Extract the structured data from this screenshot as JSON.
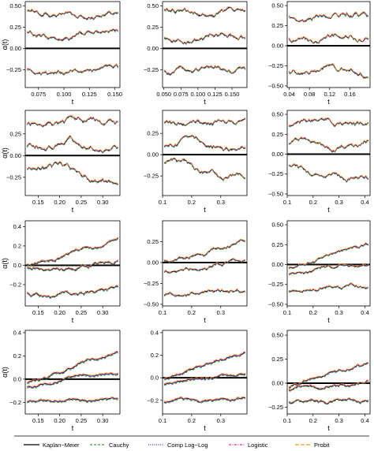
{
  "legend": {
    "entries": [
      {
        "name": "Kaplan−Meier",
        "color": "#000000",
        "dash": "solid"
      },
      {
        "name": "Cauchy",
        "color": "#2e9e2e",
        "dash": "dashed"
      },
      {
        "name": "Comp Log−Log",
        "color": "#3333dd",
        "dash": "dotted"
      },
      {
        "name": "Logistic",
        "color": "#e0309a",
        "dash": "dotdash"
      },
      {
        "name": "Probit",
        "color": "#f09a1a",
        "dash": "longdash"
      }
    ]
  },
  "chart_data": [
    {
      "type": "line",
      "panel": "r1c1",
      "xlabel": "t",
      "ylabel": "α(t)",
      "xlim": [
        0.062,
        0.155
      ],
      "ylim": [
        -0.46,
        0.55
      ],
      "xticks": [
        0.075,
        0.1,
        0.125,
        0.15
      ],
      "xtick_labels": [
        "0.075",
        "0.100",
        "0.125",
        "0.150"
      ],
      "yticks": [
        -0.25,
        0,
        0.25,
        0.5
      ],
      "ytick_labels": [
        "−0.25",
        "0.00",
        "0.25",
        "0.50"
      ],
      "bands": [
        0.41,
        0.14,
        -0.23
      ],
      "amp": 0.06,
      "trend": [
        0,
        0,
        0
      ],
      "seed": 1
    },
    {
      "type": "line",
      "panel": "r1c2",
      "xlabel": "t",
      "ylabel": "",
      "xlim": [
        0.048,
        0.172
      ],
      "ylim": [
        -0.46,
        0.55
      ],
      "xticks": [
        0.05,
        0.075,
        0.1,
        0.125,
        0.15
      ],
      "xtick_labels": [
        "0.050",
        "0.075",
        "0.100",
        "0.125",
        "0.150"
      ],
      "yticks": [
        -0.25,
        0,
        0.25,
        0.5
      ],
      "ytick_labels": [
        "−0.25",
        "0.00",
        "0.25",
        "0.50"
      ],
      "bands": [
        0.41,
        0.14,
        -0.23
      ],
      "amp": 0.06,
      "trend": [
        0,
        0,
        0
      ],
      "seed": 2
    },
    {
      "type": "line",
      "panel": "r1c3",
      "xlabel": "t",
      "ylabel": "",
      "xlim": [
        0.036,
        0.2
      ],
      "ylim": [
        -0.52,
        0.55
      ],
      "xticks": [
        0.04,
        0.08,
        0.12,
        0.16
      ],
      "xtick_labels": [
        "0.04",
        "0.08",
        "0.12",
        "0.16"
      ],
      "yticks": [
        -0.5,
        -0.25,
        0,
        0.25,
        0.5
      ],
      "ytick_labels": [
        "−0.50",
        "−0.25",
        "0.00",
        "0.25",
        "0.50"
      ],
      "bands": [
        0.38,
        0.12,
        -0.3
      ],
      "amp": 0.07,
      "trend": [
        0,
        0,
        0
      ],
      "seed": 3
    },
    {
      "type": "line",
      "panel": "r2c1",
      "xlabel": "t",
      "ylabel": "α(t)",
      "xlim": [
        0.12,
        0.34
      ],
      "ylim": [
        -0.46,
        0.52
      ],
      "xticks": [
        0.15,
        0.2,
        0.25,
        0.3
      ],
      "xtick_labels": [
        "0.15",
        "0.20",
        "0.25",
        "0.30"
      ],
      "yticks": [
        -0.25,
        0,
        0.25
      ],
      "ytick_labels": [
        "−0.25",
        "0.00",
        "0.25"
      ],
      "bands": [
        0.38,
        0.12,
        -0.2
      ],
      "amp": 0.07,
      "trend": [
        0,
        0,
        -0.15
      ],
      "seed": 4
    },
    {
      "type": "line",
      "panel": "r2c2",
      "xlabel": "t",
      "ylabel": "",
      "xlim": [
        0.1,
        0.39
      ],
      "ylim": [
        -0.48,
        0.52
      ],
      "xticks": [
        0.1,
        0.2,
        0.3
      ],
      "xtick_labels": [
        "0.1",
        "0.2",
        "0.3"
      ],
      "yticks": [
        -0.25,
        0,
        0.25
      ],
      "ytick_labels": [
        "−0.25",
        "0.00",
        "0.25"
      ],
      "bands": [
        0.38,
        0.12,
        -0.2
      ],
      "amp": 0.06,
      "trend": [
        0,
        0,
        -0.18
      ],
      "seed": 5
    },
    {
      "type": "line",
      "panel": "r2c3",
      "xlabel": "t",
      "ylabel": "",
      "xlim": [
        0.1,
        0.42
      ],
      "ylim": [
        -0.52,
        0.55
      ],
      "xticks": [
        0.1,
        0.2,
        0.3,
        0.4
      ],
      "xtick_labels": [
        "0.1",
        "0.2",
        "0.3",
        "0.4"
      ],
      "yticks": [
        -0.5,
        -0.25,
        0,
        0.25,
        0.5
      ],
      "ytick_labels": [
        "−0.50",
        "−0.25",
        "0.00",
        "0.25",
        "0.50"
      ],
      "bands": [
        0.38,
        0.12,
        -0.25
      ],
      "amp": 0.06,
      "trend": [
        0,
        0,
        -0.15
      ],
      "seed": 6
    },
    {
      "type": "line",
      "panel": "r3c1",
      "xlabel": "t",
      "ylabel": "α(t)",
      "xlim": [
        0.12,
        0.34
      ],
      "ylim": [
        -0.42,
        0.46
      ],
      "xticks": [
        0.15,
        0.2,
        0.25,
        0.3
      ],
      "xtick_labels": [
        "0.15",
        "0.20",
        "0.25",
        "0.30"
      ],
      "yticks": [
        -0.2,
        0,
        0.2,
        0.4
      ],
      "ytick_labels": [
        "−0.2",
        "0.0",
        "0.2",
        "0.4"
      ],
      "bands": [
        0.12,
        0.0,
        -0.28
      ],
      "amp": 0.04,
      "trend": [
        0.25,
        0.1,
        0.05
      ],
      "seed": 7
    },
    {
      "type": "line",
      "panel": "r3c2",
      "xlabel": "t",
      "ylabel": "",
      "xlim": [
        0.1,
        0.39
      ],
      "ylim": [
        -0.52,
        0.5
      ],
      "xticks": [
        0.1,
        0.2,
        0.3
      ],
      "xtick_labels": [
        "0.1",
        "0.2",
        "0.3"
      ],
      "yticks": [
        -0.5,
        -0.25,
        0,
        0.25
      ],
      "ytick_labels": [
        "−0.50",
        "−0.25",
        "0.00",
        "0.25"
      ],
      "bands": [
        0.12,
        -0.05,
        -0.35
      ],
      "amp": 0.04,
      "trend": [
        0.25,
        0.12,
        0.05
      ],
      "seed": 8
    },
    {
      "type": "line",
      "panel": "r3c3",
      "xlabel": "t",
      "ylabel": "",
      "xlim": [
        0.1,
        0.42
      ],
      "ylim": [
        -0.52,
        0.55
      ],
      "xticks": [
        0.1,
        0.2,
        0.3,
        0.4
      ],
      "xtick_labels": [
        "0.1",
        "0.2",
        "0.3",
        "0.4"
      ],
      "yticks": [
        -0.5,
        -0.25,
        0,
        0.25,
        0.5
      ],
      "ytick_labels": [
        "−0.50",
        "−0.25",
        "0.00",
        "0.25",
        "0.50"
      ],
      "bands": [
        0.1,
        -0.05,
        -0.3
      ],
      "amp": 0.04,
      "trend": [
        0.28,
        0.12,
        0.05
      ],
      "seed": 9
    },
    {
      "type": "line",
      "panel": "r4c1",
      "xlabel": "t",
      "ylabel": "α(t)",
      "xlim": [
        0.12,
        0.34
      ],
      "ylim": [
        -0.3,
        0.42
      ],
      "xticks": [
        0.15,
        0.2,
        0.25,
        0.3
      ],
      "xtick_labels": [
        "0.15",
        "0.20",
        "0.25",
        "0.30"
      ],
      "yticks": [
        -0.2,
        0,
        0.2,
        0.4
      ],
      "ytick_labels": [
        "−0.2",
        "0.0",
        "0.2",
        "0.4"
      ],
      "bands": [
        0.1,
        0.0,
        -0.18
      ],
      "amp": 0.02,
      "trend": [
        0.25,
        0.12,
        0.03
      ],
      "seed": 10
    },
    {
      "type": "line",
      "panel": "r4c2",
      "xlabel": "t",
      "ylabel": "",
      "xlim": [
        0.1,
        0.39
      ],
      "ylim": [
        -0.32,
        0.42
      ],
      "xticks": [
        0.1,
        0.2,
        0.3
      ],
      "xtick_labels": [
        "0.1",
        "0.2",
        "0.3"
      ],
      "yticks": [
        -0.2,
        0,
        0.2,
        0.4
      ],
      "ytick_labels": [
        "−0.2",
        "0.0",
        "0.2",
        "0.4"
      ],
      "bands": [
        0.12,
        0.0,
        -0.2
      ],
      "amp": 0.02,
      "trend": [
        0.25,
        0.12,
        0.03
      ],
      "seed": 11
    },
    {
      "type": "line",
      "panel": "r4c3",
      "xlabel": "t",
      "ylabel": "",
      "xlim": [
        0.1,
        0.42
      ],
      "ylim": [
        -0.32,
        0.55
      ],
      "xticks": [
        0.1,
        0.2,
        0.3,
        0.4
      ],
      "xtick_labels": [
        "0.1",
        "0.2",
        "0.3",
        "0.4"
      ],
      "yticks": [
        -0.25,
        0,
        0.25,
        0.5
      ],
      "ytick_labels": [
        "−0.25",
        "0.00",
        "0.25",
        "0.50"
      ],
      "bands": [
        0.1,
        -0.02,
        -0.2
      ],
      "amp": 0.03,
      "trend": [
        0.25,
        0.1,
        0.02
      ],
      "seed": 12
    }
  ]
}
